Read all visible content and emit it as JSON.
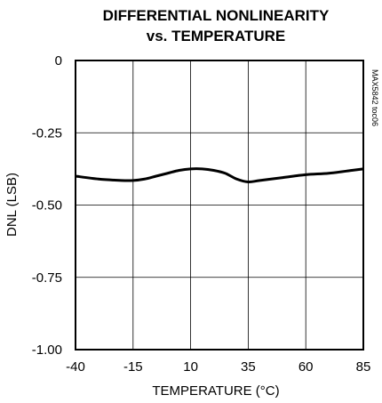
{
  "chart_data": {
    "type": "line",
    "title_line1": "DIFFERENTIAL NONLINEARITY",
    "title_line2": "vs. TEMPERATURE",
    "xlabel": "TEMPERATURE (°C)",
    "ylabel": "DNL (LSB)",
    "xlim": [
      -40,
      85
    ],
    "ylim": [
      -1.0,
      0
    ],
    "x_ticks": [
      -40,
      -15,
      10,
      35,
      60,
      85
    ],
    "x_tick_labels": [
      "-40",
      "-15",
      "10",
      "35",
      "60",
      "85"
    ],
    "y_ticks": [
      0,
      -0.25,
      -0.5,
      -0.75,
      -1.0
    ],
    "y_tick_labels": [
      "0",
      "-0.25",
      "-0.50",
      "-0.75",
      "-1.00"
    ],
    "grid": true,
    "watermark": "MAX5842 toc06",
    "series": [
      {
        "x": [
          -40,
          -30,
          -20,
          -15,
          -10,
          -5,
          0,
          5,
          10,
          15,
          20,
          25,
          30,
          35,
          40,
          50,
          60,
          70,
          80,
          85
        ],
        "y": [
          -0.4,
          -0.41,
          -0.415,
          -0.415,
          -0.41,
          -0.4,
          -0.39,
          -0.38,
          -0.375,
          -0.375,
          -0.38,
          -0.39,
          -0.41,
          -0.42,
          -0.415,
          -0.405,
          -0.395,
          -0.39,
          -0.38,
          -0.375
        ]
      }
    ]
  }
}
